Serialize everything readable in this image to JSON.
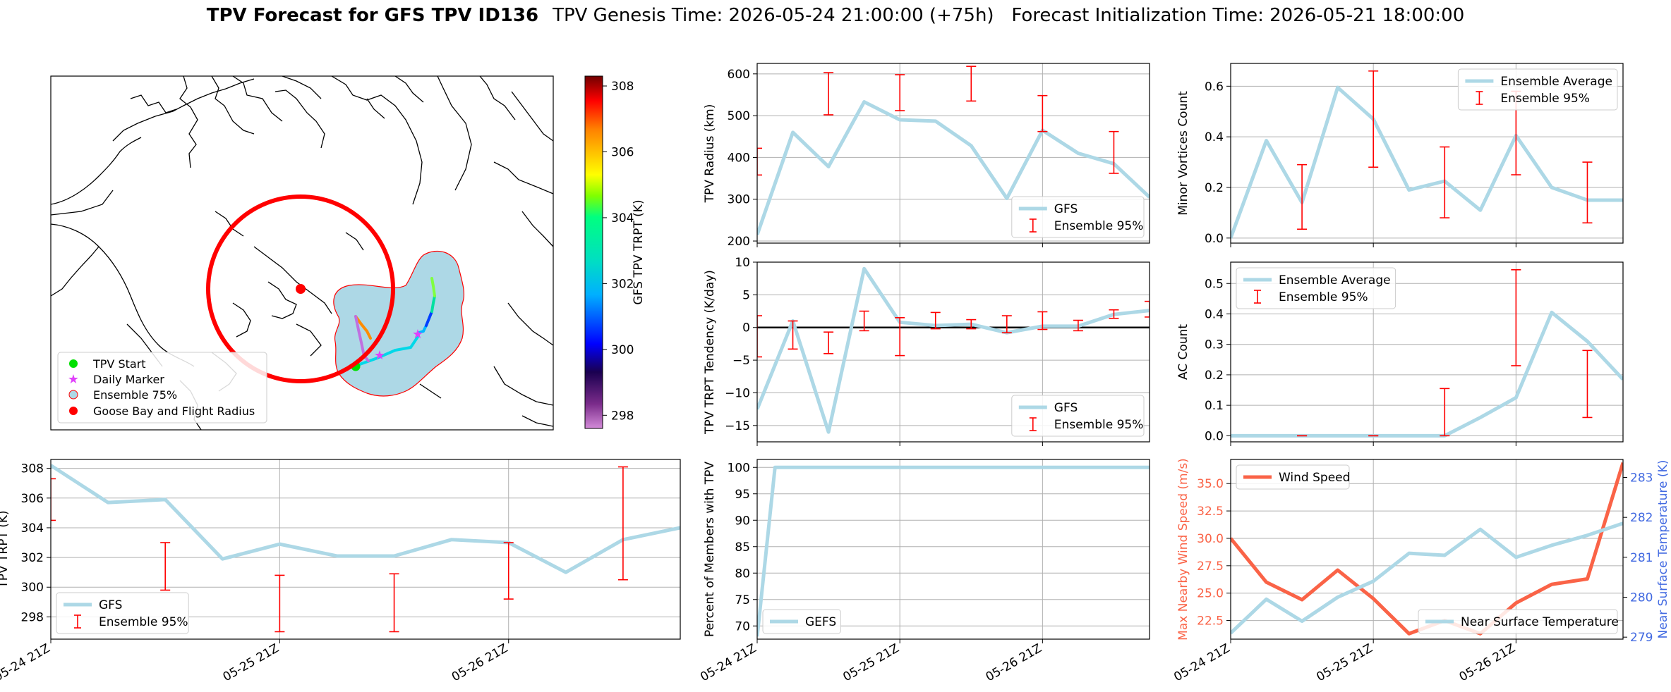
{
  "figure": {
    "title_bold": "TPV Forecast for GFS TPV ID136",
    "title_rest": "TPV Genesis Time: 2026-05-24 21:00:00 (+75h)   Forecast Initialization Time: 2026-05-21 18:00:00"
  },
  "colors": {
    "gfs_line": "#ADD8E6",
    "error_bar": "#FF0000",
    "wind_speed": "#FA6347",
    "temp_axis": "#4169E1",
    "flight_radius": "#FF0000",
    "ensemble_fill": "#ADD8E6",
    "start_marker": "#00E000",
    "daily_marker": "#E040FB"
  },
  "map": {
    "legend": [
      "TPV Start",
      "Daily Marker",
      "Ensemble 75%",
      "Goose Bay and Flight Radius"
    ],
    "colorbar_label": "GFS TPV TRPT (K)",
    "colorbar_ticks": [
      "298",
      "300",
      "302",
      "304",
      "306",
      "308"
    ],
    "colorbar_range": [
      297.6,
      308.3
    ]
  },
  "time_axis_labels": [
    "05-24 21Z",
    "05-25 21Z",
    "05-26 21Z"
  ],
  "chart_data": [
    {
      "id": "radius",
      "type": "line",
      "ylabel": "TPV Radius (km)",
      "ylim": [
        195,
        625
      ],
      "yticks": [
        200,
        300,
        400,
        500,
        600
      ],
      "x_hours": [
        0,
        6,
        12,
        18,
        24,
        30,
        36,
        42,
        48,
        54,
        60,
        66
      ],
      "series": [
        {
          "name": "GFS",
          "values": [
            215,
            460,
            378,
            533,
            490,
            487,
            428,
            302,
            465,
            410,
            385,
            305
          ]
        }
      ],
      "error_bars": [
        {
          "name": "Ensemble 95%",
          "x_hours": [
            0,
            12,
            24,
            36,
            48,
            60
          ],
          "low": [
            358,
            502,
            512,
            535,
            462,
            362
          ],
          "high": [
            422,
            603,
            598,
            618,
            548,
            462
          ]
        }
      ],
      "legend": [
        "GFS",
        "Ensemble 95%"
      ],
      "legend_loc": "lower right",
      "show_xticklabels": false
    },
    {
      "id": "minor_vortices",
      "type": "line",
      "ylabel": "Minor Vortices Count",
      "ylim": [
        -0.02,
        0.69
      ],
      "yticks": [
        0.0,
        0.2,
        0.4,
        0.6
      ],
      "x_hours": [
        0,
        6,
        12,
        18,
        24,
        30,
        36,
        42,
        48,
        54,
        60,
        66
      ],
      "series": [
        {
          "name": "Ensemble Average",
          "values": [
            0.0,
            0.385,
            0.14,
            0.595,
            0.47,
            0.19,
            0.225,
            0.11,
            0.405,
            0.2,
            0.15,
            0.15
          ]
        }
      ],
      "error_bars": [
        {
          "name": "Ensemble 95%",
          "x_hours": [
            12,
            24,
            36,
            48,
            60
          ],
          "low": [
            0.035,
            0.28,
            0.08,
            0.25,
            0.06
          ],
          "high": [
            0.29,
            0.66,
            0.36,
            0.58,
            0.3
          ]
        }
      ],
      "legend": [
        "Ensemble Average",
        "Ensemble 95%"
      ],
      "legend_loc": "upper right",
      "show_xticklabels": false
    },
    {
      "id": "tendency",
      "type": "line",
      "ylabel": "TPV TRPT Tendency (K/day)",
      "ylim": [
        -17.5,
        10
      ],
      "yticks": [
        -15,
        -10,
        -5,
        0,
        5,
        10
      ],
      "zero_line": true,
      "x_hours": [
        0,
        6,
        12,
        18,
        24,
        30,
        36,
        42,
        48,
        54,
        60,
        66
      ],
      "series": [
        {
          "name": "GFS",
          "values": [
            -12.5,
            1.0,
            -16.0,
            9.0,
            0.8,
            0.3,
            0.5,
            -0.8,
            0.2,
            0.2,
            2.0,
            2.6
          ]
        }
      ],
      "error_bars": [
        {
          "name": "Ensemble 95%",
          "x_hours": [
            0,
            6,
            12,
            18,
            24,
            30,
            36,
            42,
            48,
            54,
            60,
            66
          ],
          "low": [
            -4.5,
            -3.3,
            -4.0,
            -0.5,
            -4.3,
            -0.2,
            -0.2,
            -0.8,
            -0.3,
            -0.5,
            1.4,
            1.6
          ],
          "high": [
            1.8,
            1.0,
            -0.7,
            2.5,
            1.5,
            2.3,
            1.2,
            1.8,
            2.4,
            1.1,
            2.7,
            4.0
          ]
        }
      ],
      "legend": [
        "GFS",
        "Ensemble 95%"
      ],
      "legend_loc": "lower right",
      "show_xticklabels": false
    },
    {
      "id": "ac_count",
      "type": "line",
      "ylabel": "AC Count",
      "ylim": [
        -0.02,
        0.57
      ],
      "yticks": [
        0.0,
        0.1,
        0.2,
        0.3,
        0.4,
        0.5
      ],
      "x_hours": [
        0,
        6,
        12,
        18,
        24,
        30,
        36,
        42,
        48,
        54,
        60,
        66
      ],
      "series": [
        {
          "name": "Ensemble Average",
          "values": [
            0,
            0,
            0,
            0,
            0,
            0,
            0,
            0.06,
            0.125,
            0.405,
            0.31,
            0.185
          ]
        }
      ],
      "error_bars": [
        {
          "name": "Ensemble 95%",
          "x_hours": [
            12,
            24,
            36,
            48,
            60
          ],
          "low": [
            0,
            0,
            0,
            0.23,
            0.06
          ],
          "high": [
            0,
            0,
            0.155,
            0.545,
            0.28
          ]
        }
      ],
      "legend": [
        "Ensemble Average",
        "Ensemble 95%"
      ],
      "legend_loc": "upper left",
      "show_xticklabels": false
    },
    {
      "id": "trpt",
      "type": "line",
      "ylabel": "TPV TRPT (K)",
      "ylim": [
        296.5,
        308.6
      ],
      "yticks": [
        298,
        300,
        302,
        304,
        306,
        308
      ],
      "x_hours": [
        0,
        6,
        12,
        18,
        24,
        30,
        36,
        42,
        48,
        54,
        60,
        66
      ],
      "series": [
        {
          "name": "GFS",
          "values": [
            308.2,
            305.7,
            305.9,
            301.9,
            302.9,
            302.1,
            302.1,
            303.2,
            303.0,
            301.0,
            303.2,
            304.0
          ]
        }
      ],
      "error_bars": [
        {
          "name": "Ensemble 95%",
          "x_hours": [
            0,
            12,
            24,
            36,
            48,
            60
          ],
          "low": [
            304.5,
            299.8,
            297.0,
            297.0,
            299.2,
            300.5
          ],
          "high": [
            307.3,
            303.0,
            300.8,
            300.9,
            303.0,
            308.1
          ]
        }
      ],
      "legend": [
        "GFS",
        "Ensemble 95%"
      ],
      "legend_loc": "lower left",
      "show_xticklabels": true
    },
    {
      "id": "percent_members",
      "type": "line",
      "ylabel": "Percent of Members with TPV",
      "ylim": [
        67.5,
        101.5
      ],
      "yticks": [
        70,
        75,
        80,
        85,
        90,
        95,
        100
      ],
      "x_hours": [
        0,
        3,
        6,
        12,
        18,
        24,
        30,
        36,
        42,
        48,
        54,
        60,
        66
      ],
      "series": [
        {
          "name": "GEFS",
          "values": [
            68,
            100,
            100,
            100,
            100,
            100,
            100,
            100,
            100,
            100,
            100,
            100,
            100
          ]
        }
      ],
      "legend": [
        "GEFS"
      ],
      "legend_loc": "lower left",
      "show_xticklabels": true
    },
    {
      "id": "wind_temp",
      "type": "line",
      "ylabel": "Max Nearby Wind Speed (m/s)",
      "ylim": [
        20.8,
        37.2
      ],
      "yticks": [
        22.5,
        25.0,
        27.5,
        30.0,
        32.5,
        35.0
      ],
      "ylabel2": "Near Surface Temperature (K)",
      "y2lim": [
        278.95,
        283.45
      ],
      "y2ticks": [
        279,
        280,
        281,
        282,
        283
      ],
      "x_hours": [
        0,
        6,
        12,
        18,
        24,
        30,
        36,
        42,
        48,
        54,
        60,
        66
      ],
      "series": [
        {
          "name": "Wind Speed",
          "axis": "left",
          "values": [
            30.0,
            26.0,
            24.4,
            27.1,
            24.5,
            21.3,
            22.5,
            21.3,
            24.1,
            25.8,
            26.3,
            36.9
          ]
        },
        {
          "name": "Near Surface Temperature",
          "axis": "right",
          "values": [
            279.1,
            279.95,
            279.4,
            280.0,
            280.4,
            281.1,
            281.05,
            281.7,
            281.0,
            281.3,
            281.55,
            281.85
          ]
        }
      ],
      "legend": [
        "Wind Speed",
        "Near Surface Temperature"
      ],
      "show_xticklabels": true
    }
  ]
}
